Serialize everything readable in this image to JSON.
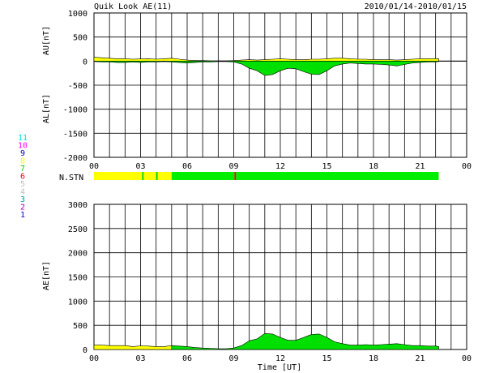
{
  "title": "Quik Look AE(11)",
  "date_range": "2010/01/14-2010/01/15",
  "nstn_label": "N.STN",
  "station_legend": [
    {
      "label": "11",
      "color": "#00e0e0"
    },
    {
      "label": "10",
      "color": "#ff00ff"
    },
    {
      "label": "9",
      "color": "#0000c0"
    },
    {
      "label": "8",
      "color": "#ffff00"
    },
    {
      "label": "7",
      "color": "#00d000"
    },
    {
      "label": "6",
      "color": "#ff0000"
    },
    {
      "label": "5",
      "color": "#c0c0c0"
    },
    {
      "label": "4",
      "color": "#c0c0c0"
    },
    {
      "label": "3",
      "color": "#00a0a0"
    },
    {
      "label": "2",
      "color": "#a000a0"
    },
    {
      "label": "1",
      "color": "#0000ff"
    }
  ],
  "colors": {
    "au_fill": "#ffff00",
    "al_fill": "#00e000",
    "ae_fill_early": "#ffff00",
    "ae_fill_late": "#00e000",
    "grid": "#000000",
    "nstn_yellow": "#ffff00",
    "nstn_green": "#00ee00",
    "nstn_red": "#ff0000"
  },
  "chart_data": [
    {
      "type": "area",
      "name": "AU/AL",
      "ylabel_top": "AU[nT]",
      "ylabel_bottom": "AL[nT]",
      "ylim": [
        -2000,
        1000
      ],
      "yticks": [
        "1000",
        "500",
        "0",
        "-500",
        "-1000",
        "-1500",
        "-2000"
      ],
      "ytick_values": [
        1000,
        500,
        0,
        -500,
        -1000,
        -1500,
        -2000
      ],
      "xlim": [
        0,
        24
      ],
      "xticks": [
        "00",
        "03",
        "06",
        "09",
        "12",
        "15",
        "18",
        "21",
        "00"
      ],
      "data_end_hour": 22.2,
      "series": [
        {
          "name": "AU",
          "x": [
            0,
            0.5,
            1,
            1.5,
            2,
            2.5,
            3,
            3.5,
            4,
            4.5,
            5,
            5.5,
            6,
            6.5,
            7,
            7.5,
            8,
            8.5,
            9,
            9.5,
            10,
            10.5,
            11,
            11.5,
            12,
            12.5,
            13,
            13.5,
            14,
            14.5,
            15,
            15.5,
            16,
            16.5,
            17,
            17.5,
            18,
            18.5,
            19,
            19.5,
            20,
            20.5,
            21,
            21.5,
            22,
            22.2
          ],
          "values": [
            80,
            70,
            60,
            50,
            50,
            40,
            45,
            50,
            40,
            50,
            60,
            40,
            20,
            10,
            10,
            5,
            5,
            5,
            10,
            20,
            30,
            20,
            30,
            40,
            50,
            40,
            30,
            30,
            40,
            40,
            50,
            60,
            60,
            50,
            40,
            40,
            30,
            30,
            30,
            20,
            30,
            40,
            50,
            50,
            50,
            50
          ]
        },
        {
          "name": "AL",
          "x": [
            0,
            0.5,
            1,
            1.5,
            2,
            2.5,
            3,
            3.5,
            4,
            4.5,
            5,
            5.5,
            6,
            6.5,
            7,
            7.5,
            8,
            8.5,
            9,
            9.5,
            10,
            10.5,
            11,
            11.5,
            12,
            12.5,
            13,
            13.5,
            14,
            14.5,
            15,
            15.5,
            16,
            16.5,
            17,
            17.5,
            18,
            18.5,
            19,
            19.5,
            20,
            20.5,
            21,
            21.5,
            22,
            22.2
          ],
          "values": [
            -10,
            -20,
            -20,
            -30,
            -30,
            -20,
            -30,
            -20,
            -20,
            -10,
            -20,
            -30,
            -40,
            -30,
            -20,
            -20,
            -10,
            -10,
            -20,
            -60,
            -150,
            -200,
            -300,
            -280,
            -200,
            -150,
            -160,
            -220,
            -270,
            -280,
            -200,
            -100,
            -60,
            -40,
            -50,
            -60,
            -60,
            -70,
            -80,
            -100,
            -70,
            -40,
            -30,
            -20,
            -20,
            -10
          ]
        }
      ]
    },
    {
      "type": "area",
      "name": "AE",
      "ylabel": "AE[nT]",
      "xlabel": "Time [UT]",
      "ylim": [
        0,
        3000
      ],
      "yticks": [
        "3000",
        "2500",
        "2000",
        "1500",
        "1000",
        "500",
        "0"
      ],
      "ytick_values": [
        3000,
        2500,
        2000,
        1500,
        1000,
        500,
        0
      ],
      "xlim": [
        0,
        24
      ],
      "xticks": [
        "00",
        "03",
        "06",
        "09",
        "12",
        "15",
        "18",
        "21",
        "00"
      ],
      "data_end_hour": 22.2,
      "color_change_hour": 5.0,
      "series": [
        {
          "name": "AE",
          "x": [
            0,
            0.5,
            1,
            1.5,
            2,
            2.5,
            3,
            3.5,
            4,
            4.5,
            5,
            5.5,
            6,
            6.5,
            7,
            7.5,
            8,
            8.5,
            9,
            9.5,
            10,
            10.5,
            11,
            11.5,
            12,
            12.5,
            13,
            13.5,
            14,
            14.5,
            15,
            15.5,
            16,
            16.5,
            17,
            17.5,
            18,
            18.5,
            19,
            19.5,
            20,
            20.5,
            21,
            21.5,
            22,
            22.2
          ],
          "values": [
            90,
            90,
            80,
            80,
            80,
            60,
            75,
            70,
            60,
            60,
            80,
            70,
            60,
            40,
            30,
            25,
            15,
            15,
            30,
            80,
            180,
            220,
            330,
            320,
            250,
            190,
            190,
            250,
            310,
            320,
            250,
            160,
            120,
            90,
            90,
            100,
            90,
            100,
            110,
            120,
            100,
            80,
            80,
            70,
            70,
            60
          ]
        }
      ]
    },
    {
      "type": "bar",
      "name": "N.STN",
      "xlim": [
        0,
        22.2
      ],
      "segments": [
        {
          "start": 0.0,
          "end": 3.1,
          "color": "#ffff00"
        },
        {
          "start": 3.1,
          "end": 3.2,
          "color": "#00d000"
        },
        {
          "start": 3.2,
          "end": 4.0,
          "color": "#ffff00"
        },
        {
          "start": 4.0,
          "end": 4.1,
          "color": "#00d000"
        },
        {
          "start": 4.1,
          "end": 5.0,
          "color": "#ffff00"
        },
        {
          "start": 5.0,
          "end": 9.05,
          "color": "#00ee00"
        },
        {
          "start": 9.05,
          "end": 9.15,
          "color": "#ff0000"
        },
        {
          "start": 9.15,
          "end": 22.2,
          "color": "#00ee00"
        }
      ]
    }
  ]
}
